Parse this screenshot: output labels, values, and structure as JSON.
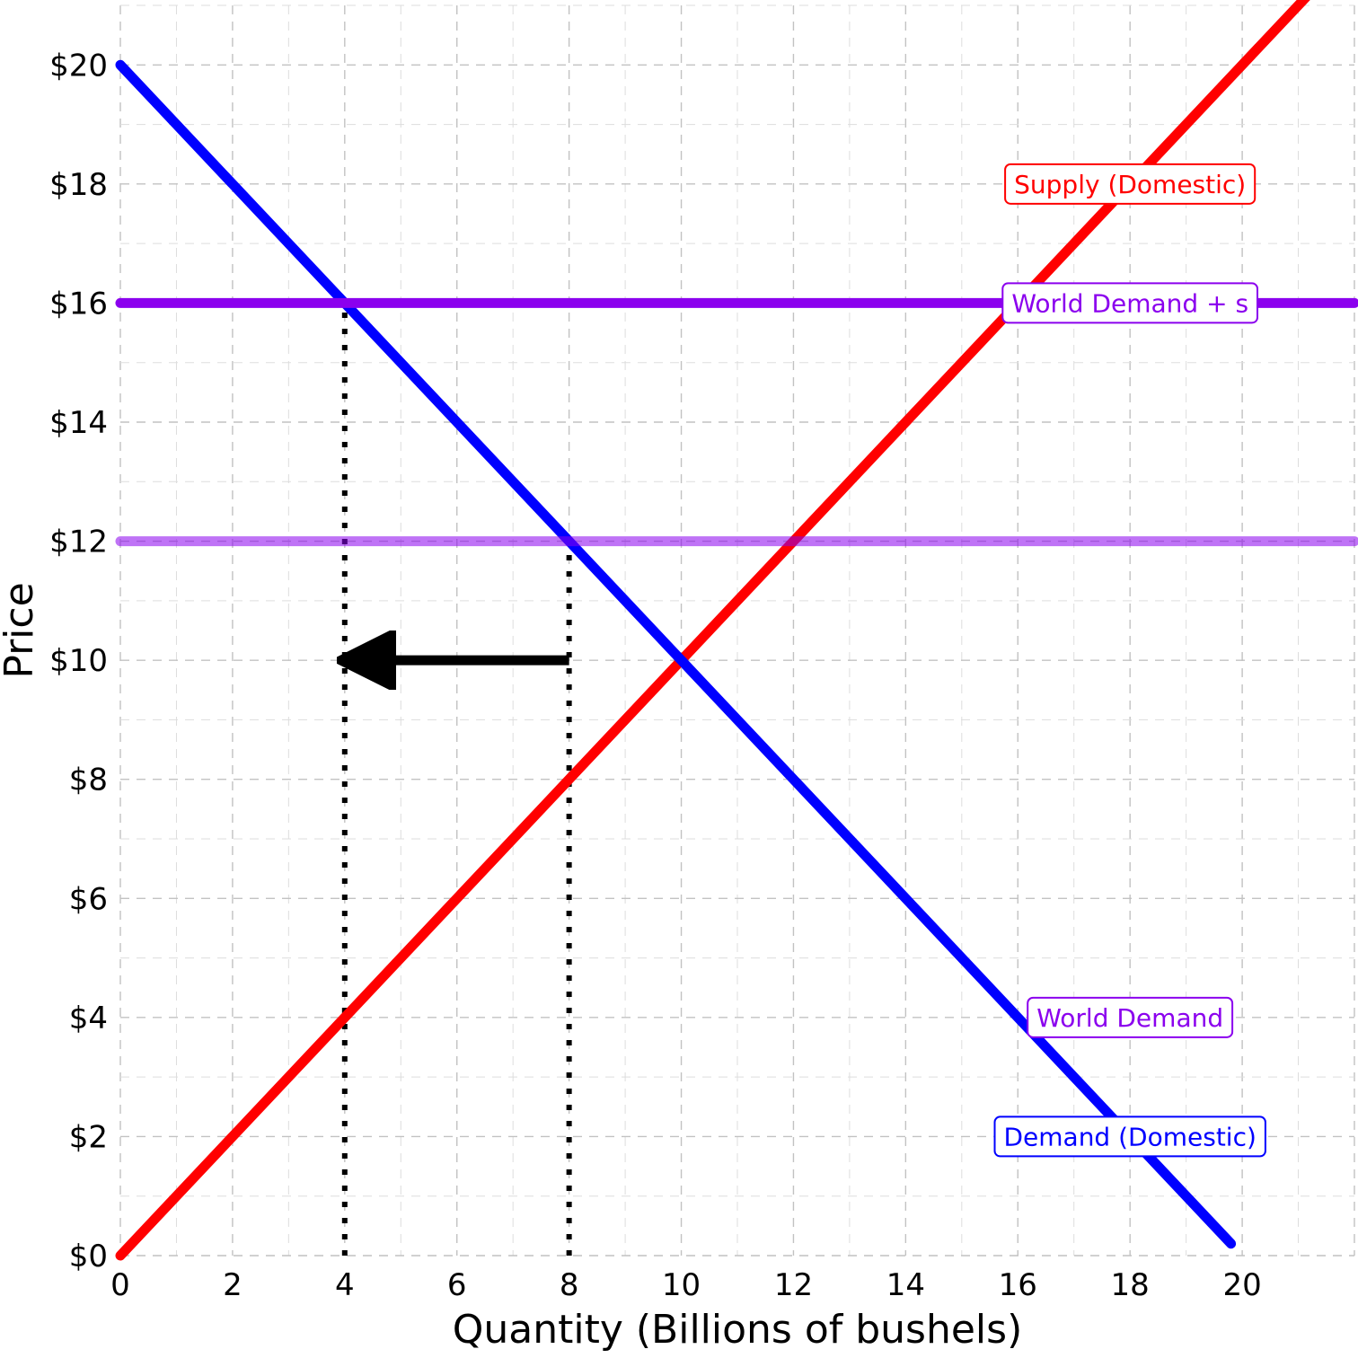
{
  "chart_data": {
    "type": "line",
    "title": "",
    "xlabel": "Quantity (Billions of bushels)",
    "ylabel": "Price",
    "xlim": [
      0,
      22
    ],
    "ylim": [
      0,
      21
    ],
    "x_ticks": [
      0,
      2,
      4,
      6,
      8,
      10,
      12,
      14,
      16,
      18,
      20
    ],
    "x_tick_labels": [
      "0",
      "2",
      "4",
      "6",
      "8",
      "10",
      "12",
      "14",
      "16",
      "18",
      "20"
    ],
    "y_ticks": [
      0,
      2,
      4,
      6,
      8,
      10,
      12,
      14,
      16,
      18,
      20
    ],
    "y_tick_labels": [
      "$0",
      "$2",
      "$4",
      "$6",
      "$8",
      "$10",
      "$12",
      "$14",
      "$16",
      "$18",
      "$20"
    ],
    "grid": true,
    "grid_style": "dashed",
    "series": [
      {
        "key": "supply",
        "name": "Supply (Domestic)",
        "color": "#ff0000",
        "opacity": 1,
        "x": [
          0,
          22
        ],
        "y": [
          0,
          22
        ]
      },
      {
        "key": "demand",
        "name": "Demand (Domestic)",
        "color": "#0000ff",
        "opacity": 1,
        "x": [
          0,
          19.8
        ],
        "y": [
          20,
          0.2
        ]
      },
      {
        "key": "world_demand_s",
        "name": "World Demand + s",
        "color": "#8b00ee",
        "opacity": 1,
        "x": [
          0,
          22
        ],
        "y": [
          16,
          16
        ]
      },
      {
        "key": "world_demand",
        "name": "World Demand",
        "color": "#8b00ee",
        "opacity": 0.55,
        "x": [
          0,
          22
        ],
        "y": [
          12,
          12
        ]
      }
    ],
    "reference_lines": [
      {
        "key": "q4",
        "x": [
          4,
          4
        ],
        "y": [
          0,
          16
        ],
        "style": "dotted",
        "color": "#000000"
      },
      {
        "key": "q8",
        "x": [
          8,
          8
        ],
        "y": [
          0,
          12
        ],
        "style": "dotted",
        "color": "#000000"
      }
    ],
    "arrow": {
      "from": [
        8,
        10
      ],
      "to": [
        4,
        10
      ],
      "color": "#000000"
    },
    "labels": [
      {
        "key": "supply",
        "text": "Supply (Domestic)",
        "x": 18,
        "y": 18,
        "color": "#ff0000"
      },
      {
        "key": "world_demand_s",
        "text": "World Demand + s",
        "x": 18,
        "y": 16,
        "color": "#8b00ee"
      },
      {
        "key": "world_demand",
        "text": "World Demand",
        "x": 18,
        "y": 4,
        "color": "#8b00ee"
      },
      {
        "key": "demand",
        "text": "Demand (Domestic)",
        "x": 18,
        "y": 2,
        "color": "#0000ff"
      }
    ]
  }
}
